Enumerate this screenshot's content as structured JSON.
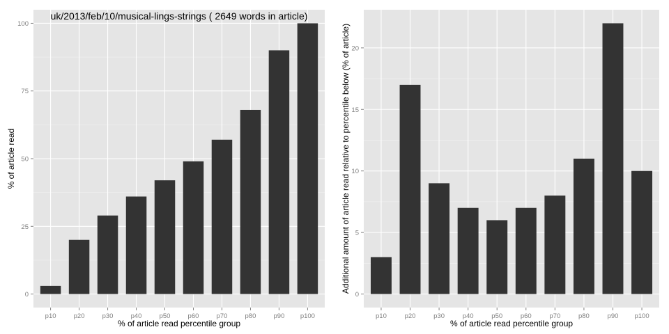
{
  "chart_data": [
    {
      "type": "bar",
      "title": "uk/2013/feb/10/musical-lings-strings ( 2649 words in article)",
      "xlabel": "% of article read percentile group",
      "ylabel": "% of article read",
      "categories": [
        "p10",
        "p20",
        "p30",
        "p40",
        "p50",
        "p60",
        "p70",
        "p80",
        "p90",
        "p100"
      ],
      "values": [
        3,
        20,
        29,
        36,
        42,
        49,
        57,
        68,
        90,
        100
      ],
      "ylim": [
        -5,
        105
      ],
      "yticks": [
        0,
        25,
        50,
        75,
        100
      ],
      "bar_color": "#333333",
      "panel_color": "#e5e5e5",
      "grid": true
    },
    {
      "type": "bar",
      "title": "",
      "xlabel": "% of article read percentile group",
      "ylabel": "Additional amount of article read relative to percentile below (% of article)",
      "categories": [
        "p10",
        "p20",
        "p30",
        "p40",
        "p50",
        "p60",
        "p70",
        "p80",
        "p90",
        "p100"
      ],
      "values": [
        3,
        17,
        9,
        7,
        6,
        7,
        8,
        11,
        22,
        10
      ],
      "ylim": [
        -1.1,
        23.1
      ],
      "yticks": [
        0,
        5,
        10,
        15,
        20
      ],
      "bar_color": "#333333",
      "panel_color": "#e5e5e5",
      "grid": true
    }
  ]
}
